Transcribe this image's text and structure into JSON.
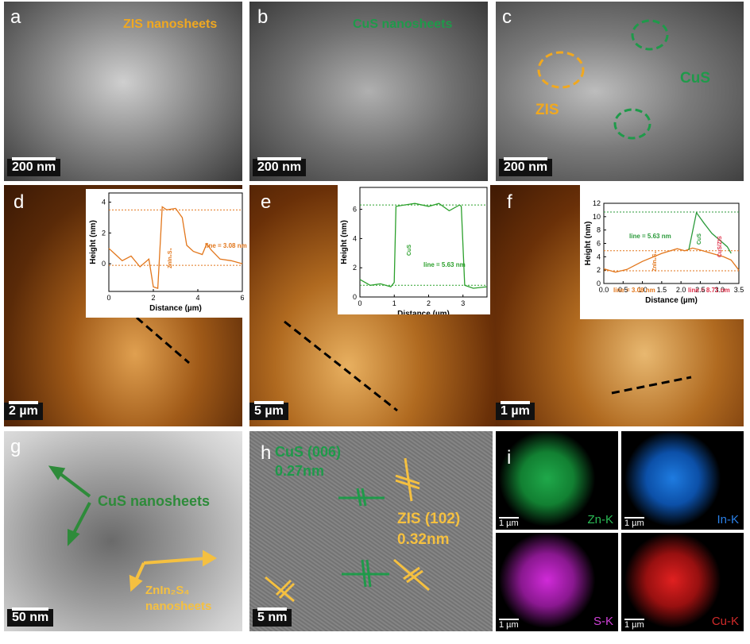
{
  "panels": {
    "a": {
      "letter": "a",
      "label": "ZIS nanosheets",
      "scale": "200 nm"
    },
    "b": {
      "letter": "b",
      "label": "CuS nanosheets",
      "scale": "200 nm"
    },
    "c": {
      "letter": "c",
      "labels": [
        "ZIS",
        "CuS"
      ],
      "scale": "200 nm"
    },
    "d": {
      "letter": "d",
      "scale": "2 µm",
      "inset": {
        "type": "line",
        "xlabel": "Distance (µm)",
        "ylabel": "Height (nm)",
        "xlim": [
          0,
          6
        ],
        "ylim": [
          -1.8,
          4.6
        ],
        "xticks": [
          0,
          2,
          4,
          6
        ],
        "yticks": [
          0,
          2,
          4
        ],
        "reference_lines": [
          3.5,
          -0.1
        ],
        "series": [
          {
            "color": "#e2761b",
            "x": [
              0,
              0.3,
              0.6,
              1,
              1.4,
              1.8,
              2,
              2.2,
              2.4,
              2.6,
              3,
              3.3,
              3.5,
              3.8,
              4.2,
              4.4,
              4.6,
              5,
              5.5,
              6
            ],
            "values": [
              1,
              0.6,
              0.2,
              0.5,
              -0.2,
              0.3,
              -1.5,
              -1.6,
              3.7,
              3.5,
              3.6,
              3,
              1.2,
              0.8,
              0.6,
              1.3,
              0.9,
              0.3,
              0.2,
              0
            ]
          }
        ],
        "annotations": [
          "line = 3.08 nm",
          "ZnIn₂S₄"
        ]
      }
    },
    "e": {
      "letter": "e",
      "scale": "5 µm",
      "inset": {
        "type": "line",
        "xlabel": "Distance (µm)",
        "ylabel": "Height (nm)",
        "xlim": [
          0,
          3.7
        ],
        "ylim": [
          0,
          7.5
        ],
        "xticks": [
          0,
          1,
          2,
          3
        ],
        "yticks": [
          0,
          2,
          4,
          6
        ],
        "reference_lines": [
          6.3,
          0.8
        ],
        "series": [
          {
            "color": "#2ca02c",
            "x": [
              0,
              0.3,
              0.6,
              0.9,
              1,
              1.05,
              1.3,
              1.6,
              2,
              2.3,
              2.6,
              2.9,
              2.95,
              3.05,
              3.3,
              3.7
            ],
            "values": [
              1.2,
              0.8,
              0.9,
              0.7,
              1,
              6.2,
              6.3,
              6.4,
              6.2,
              6.4,
              5.9,
              6.3,
              6.2,
              0.8,
              0.6,
              0.7
            ]
          }
        ],
        "annotations": [
          "line = 5.63 nm",
          "CuS"
        ]
      }
    },
    "f": {
      "letter": "f",
      "scale": "1 µm",
      "inset": {
        "type": "line",
        "xlabel": "Distance (µm)",
        "ylabel": "Height (nm)",
        "xlim": [
          0,
          3.5
        ],
        "ylim": [
          0,
          12
        ],
        "xticks": [
          {
            "value": 0,
            "label": "0.0"
          },
          0.5,
          {
            "value": 1,
            "label": "1.0"
          },
          1.5,
          {
            "value": 2,
            "label": "2.0"
          },
          2.5,
          {
            "value": 3,
            "label": "3.0"
          },
          3.5
        ],
        "yticks": [
          0,
          2,
          4,
          6,
          8,
          10,
          12
        ],
        "reference_lines": [
          10.7,
          4.9,
          1.9
        ],
        "series": [
          {
            "color": "#e2761b",
            "x": [
              0,
              0.3,
              0.6,
              1,
              1.5,
              1.9,
              2.1,
              2.3,
              2.5,
              2.8,
              3.1,
              3.3,
              3.5
            ],
            "values": [
              2.2,
              1.7,
              2.1,
              3.3,
              4.5,
              5.2,
              4.9,
              5.3,
              5,
              4.5,
              4,
              3.5,
              2
            ]
          },
          {
            "color": "#2a9a3a",
            "x": [
              2.2,
              2.4,
              2.6,
              2.8,
              3,
              3.2,
              3.3
            ],
            "values": [
              5,
              10.6,
              9,
              7.5,
              6.5,
              5.5,
              4.5
            ]
          }
        ],
        "annotations": [
          "line = 5.63 nm",
          "line = 3.08 nm",
          "line = 8.71 nm",
          "CuS",
          "ZnIn₂S₄",
          "CuS/ZIS"
        ]
      }
    },
    "g": {
      "letter": "g",
      "labels": [
        "CuS nanosheets",
        "ZnIn₂S₄",
        "nanosheets"
      ],
      "scale": "50 nm"
    },
    "h": {
      "letter": "h",
      "labels": [
        "CuS (006)",
        "0.27nm",
        "ZIS (102)",
        "0.32nm"
      ],
      "scale": "5 nm"
    },
    "i": {
      "letter": "i",
      "maps": [
        {
          "element": "Zn-K",
          "scale": "1 µm"
        },
        {
          "element": "In-K",
          "scale": "1 µm"
        },
        {
          "element": "S-K",
          "scale": "1 µm"
        },
        {
          "element": "Cu-K",
          "scale": "1 µm"
        }
      ]
    }
  }
}
